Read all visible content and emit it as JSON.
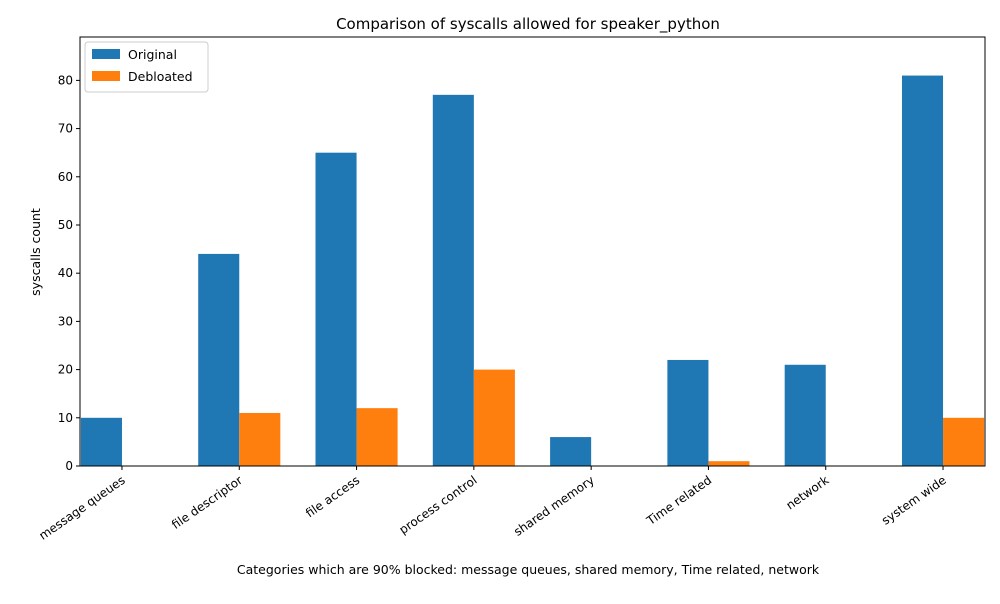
{
  "chart_data": {
    "type": "bar",
    "title": "Comparison of syscalls allowed for speaker_python",
    "xlabel": "Categories which are 90% blocked: message queues, shared memory, Time related, network",
    "ylabel": "syscalls count",
    "categories": [
      "message queues",
      "file descriptor",
      "file access",
      "process control",
      "shared memory",
      "Time related",
      "network",
      "system wide"
    ],
    "series": [
      {
        "name": "Original",
        "color": "#1f77b4",
        "values": [
          10,
          44,
          65,
          77,
          6,
          22,
          21,
          81
        ]
      },
      {
        "name": "Debloated",
        "color": "#ff7f0e",
        "values": [
          0,
          11,
          12,
          20,
          0,
          1,
          0,
          10
        ]
      }
    ],
    "ylim": [
      0,
      89
    ],
    "yticks": [
      0,
      10,
      20,
      30,
      40,
      50,
      60,
      70,
      80
    ],
    "legend_position": "top-left",
    "grid": false
  }
}
